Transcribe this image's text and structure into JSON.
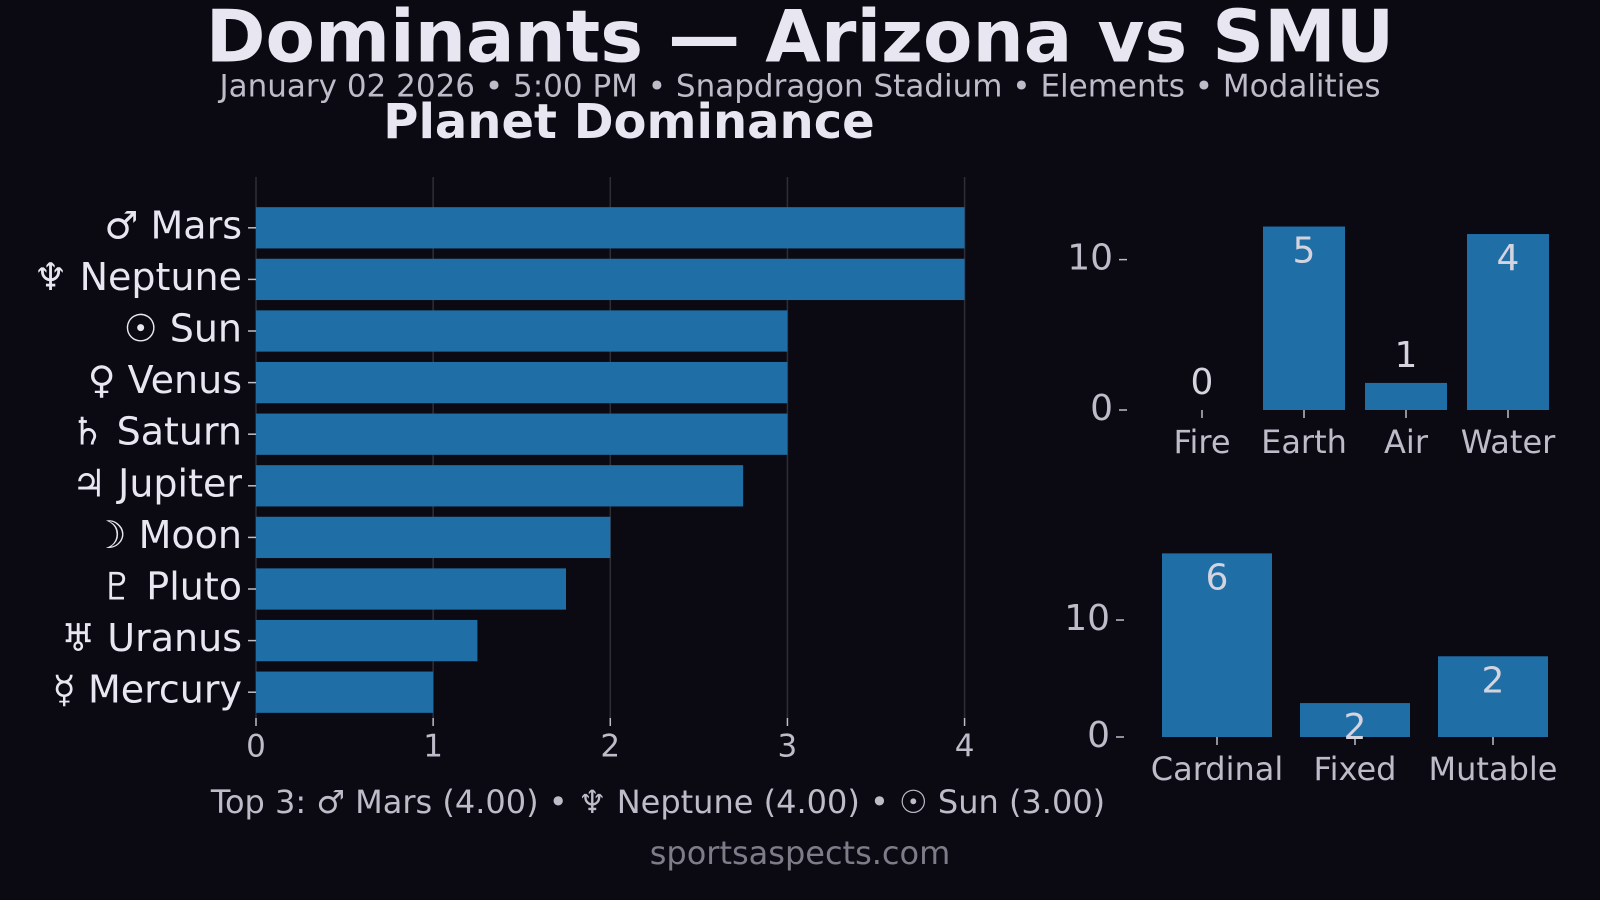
{
  "title": "Dominants — Arizona vs SMU",
  "subtitle": "January 02 2026 • 5:00 PM • Snapdragon Stadium • Elements • Modalities",
  "footer": "Top 3: ♂ Mars (4.00) • ♆ Neptune (4.00) • ☉ Sun (3.00)",
  "source": "sportsaspects.com",
  "chart_data": [
    {
      "type": "hbar",
      "title": "Planet Dominance",
      "categories": [
        "♂ Mars",
        "♆ Neptune",
        "☉ Sun",
        "♀ Venus",
        "♄ Saturn",
        "♃ Jupiter",
        "☽ Moon",
        "♇ Pluto",
        "♅ Uranus",
        "☿ Mercury"
      ],
      "values": [
        4,
        4,
        3,
        3,
        3,
        2.75,
        2,
        1.75,
        1.25,
        1
      ],
      "color": "#1f6ea6",
      "xlim": [
        0,
        4.2
      ],
      "xticks": [
        0,
        1,
        2,
        3,
        4
      ],
      "grid": true
    },
    {
      "type": "bar",
      "categories": [
        "Fire",
        "Earth",
        "Air",
        "Water"
      ],
      "values": [
        0,
        12.2,
        1.8,
        11.7
      ],
      "counts": [
        0,
        5,
        1,
        4
      ],
      "color": "#1f6ea6",
      "ylim": [
        0,
        12.9
      ],
      "yticks": [
        0,
        10
      ]
    },
    {
      "type": "bar",
      "categories": [
        "Cardinal",
        "Fixed",
        "Mutable"
      ],
      "values": [
        15.7,
        2.9,
        6.9
      ],
      "counts": [
        6,
        2,
        2
      ],
      "color": "#1f6ea6",
      "ylim": [
        0,
        16.5
      ],
      "yticks": [
        0,
        10
      ]
    }
  ]
}
